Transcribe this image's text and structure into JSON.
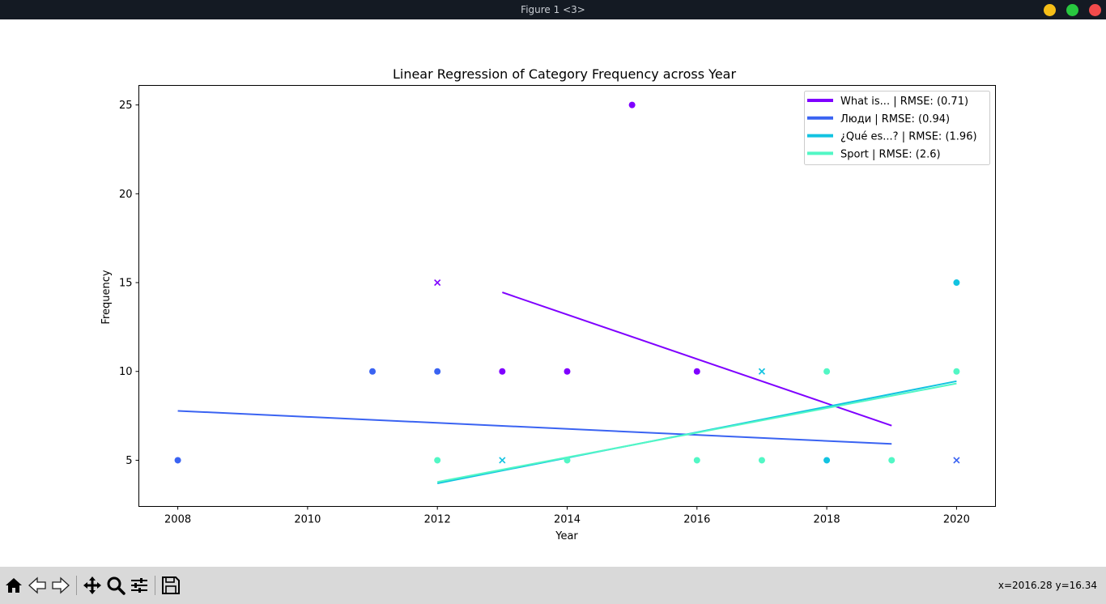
{
  "window": {
    "title": "Figure 1 <3>",
    "buttons": [
      {
        "name": "minimize",
        "color": "#f5be17"
      },
      {
        "name": "maximize",
        "color": "#28c83f"
      },
      {
        "name": "close",
        "color": "#f14b4b"
      }
    ]
  },
  "toolbar": {
    "tools": [
      "home-icon",
      "back-arrow-icon",
      "forward-arrow-icon",
      "pan-icon",
      "zoom-icon",
      "configure-subplots-icon",
      "save-icon"
    ],
    "coords": "x=2016.28 y=16.34"
  },
  "chart_data": {
    "type": "scatter",
    "title": "Linear Regression of Category Frequency across Year",
    "xlabel": "Year",
    "ylabel": "Frequency",
    "xlim": [
      2007.4,
      2020.6
    ],
    "ylim": [
      2.4,
      26.1
    ],
    "xticks": [
      2008,
      2010,
      2012,
      2014,
      2016,
      2018,
      2020
    ],
    "yticks": [
      5,
      10,
      15,
      20,
      25
    ],
    "legend_position": "upper right",
    "series": [
      {
        "name": "What is... | RMSE: (0.71)",
        "color": "#7f00ff",
        "points": [
          [
            2012,
            15,
            "x"
          ],
          [
            2013,
            10,
            "o"
          ],
          [
            2014,
            10,
            "o"
          ],
          [
            2015,
            25,
            "o"
          ],
          [
            2016,
            10,
            "o"
          ]
        ],
        "fit": [
          [
            2013,
            14.45
          ],
          [
            2019,
            6.95
          ]
        ]
      },
      {
        "name": "Люди | RMSE: (0.94)",
        "color": "#3a63f2",
        "points": [
          [
            2008,
            5,
            "o"
          ],
          [
            2011,
            10,
            "o"
          ],
          [
            2012,
            10,
            "o"
          ],
          [
            2020,
            5,
            "x"
          ]
        ],
        "fit": [
          [
            2008,
            7.78
          ],
          [
            2019,
            5.92
          ]
        ]
      },
      {
        "name": "¿Qué es...? | RMSE: (1.96)",
        "color": "#12c3e1",
        "points": [
          [
            2013,
            5,
            "x"
          ],
          [
            2017,
            10,
            "x"
          ],
          [
            2018,
            5,
            "o"
          ],
          [
            2020,
            15,
            "o"
          ]
        ],
        "fit": [
          [
            2012,
            3.7
          ],
          [
            2020,
            9.45
          ]
        ]
      },
      {
        "name": "Sport | RMSE: (2.6)",
        "color": "#52f7c5",
        "points": [
          [
            2012,
            5,
            "o"
          ],
          [
            2014,
            5,
            "o"
          ],
          [
            2016,
            5,
            "o"
          ],
          [
            2017,
            5,
            "o"
          ],
          [
            2018,
            10,
            "o"
          ],
          [
            2019,
            5,
            "o"
          ],
          [
            2020,
            10,
            "o"
          ]
        ],
        "fit": [
          [
            2012,
            3.78
          ],
          [
            2020,
            9.32
          ]
        ]
      }
    ]
  }
}
